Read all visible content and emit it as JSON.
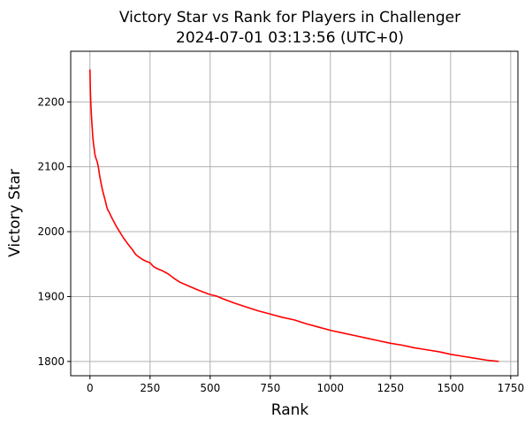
{
  "chart_data": {
    "type": "line",
    "title": "Victory Star vs Rank for Players in Challenger",
    "subtitle": "2024-07-01 03:13:56 (UTC+0)",
    "xlabel": "Rank",
    "ylabel": "Victory Star",
    "xlim": [
      -80,
      1780
    ],
    "ylim": [
      1778,
      2278
    ],
    "xticks": [
      0,
      250,
      500,
      750,
      1000,
      1250,
      1500,
      1750
    ],
    "yticks": [
      1800,
      1900,
      2000,
      2100,
      2200
    ],
    "grid": true,
    "series": [
      {
        "color": "#ff0000",
        "x": [
          0,
          1,
          2,
          4,
          6,
          8,
          10,
          12,
          15,
          18,
          20,
          25,
          30,
          35,
          40,
          45,
          50,
          55,
          60,
          65,
          70,
          75,
          80,
          90,
          100,
          110,
          120,
          130,
          140,
          150,
          160,
          175,
          190,
          200,
          215,
          230,
          250,
          265,
          280,
          300,
          325,
          350,
          375,
          400,
          450,
          500,
          525,
          550,
          600,
          650,
          700,
          750,
          800,
          850,
          900,
          950,
          1000,
          1050,
          1100,
          1150,
          1200,
          1250,
          1300,
          1350,
          1400,
          1450,
          1500,
          1550,
          1600,
          1650,
          1700
        ],
        "y": [
          2250,
          2232,
          2215,
          2195,
          2180,
          2168,
          2157,
          2145,
          2135,
          2127,
          2120,
          2113,
          2108,
          2100,
          2087,
          2077,
          2068,
          2060,
          2053,
          2046,
          2038,
          2033,
          2030,
          2022,
          2015,
          2008,
          2002,
          1996,
          1990,
          1985,
          1980,
          1973,
          1965,
          1962,
          1958,
          1955,
          1952,
          1946,
          1943,
          1940,
          1935,
          1928,
          1922,
          1918,
          1910,
          1903,
          1901,
          1897,
          1890,
          1884,
          1878,
          1873,
          1868,
          1864,
          1858,
          1853,
          1848,
          1844,
          1840,
          1836,
          1832,
          1828,
          1825,
          1821,
          1818,
          1815,
          1811,
          1808,
          1805,
          1802,
          1800
        ]
      }
    ]
  }
}
